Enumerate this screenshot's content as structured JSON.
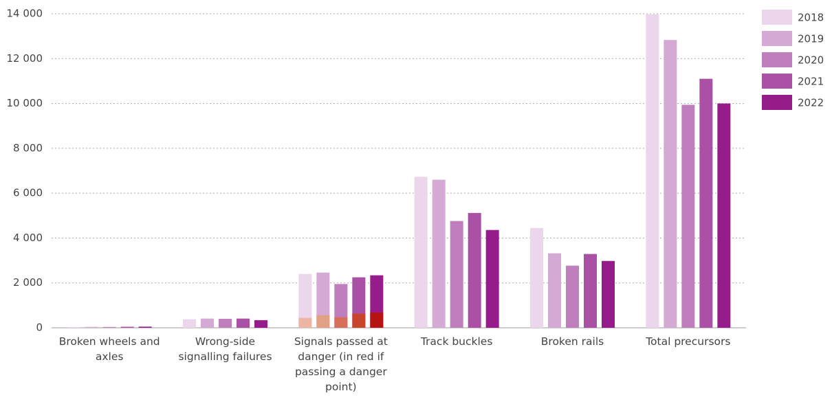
{
  "chart_data": {
    "type": "bar",
    "categories": [
      "Broken wheels and axles",
      "Wrong-side signalling failures",
      "Signals passed at danger (in red if passing a danger point)",
      "Track buckles",
      "Broken rails",
      "Total precursors"
    ],
    "series": [
      {
        "name": "2018",
        "color": "#ebd6eb",
        "values": [
          30,
          380,
          2400,
          6730,
          4450,
          13970
        ],
        "highlight_values": [
          null,
          null,
          440,
          null,
          null,
          null
        ],
        "highlight_color": "#eeb5a2"
      },
      {
        "name": "2019",
        "color": "#d4aad4",
        "values": [
          40,
          410,
          2460,
          6600,
          3320,
          12830
        ],
        "highlight_values": [
          null,
          null,
          560,
          null,
          null,
          null
        ],
        "highlight_color": "#e2a085"
      },
      {
        "name": "2020",
        "color": "#bf7ebc",
        "values": [
          35,
          400,
          1950,
          4760,
          2770,
          9940
        ],
        "highlight_values": [
          null,
          null,
          470,
          null,
          null,
          null
        ],
        "highlight_color": "#d6705b"
      },
      {
        "name": "2021",
        "color": "#aa50a5",
        "values": [
          45,
          410,
          2250,
          5120,
          3290,
          11100
        ],
        "highlight_values": [
          null,
          null,
          630,
          null,
          null,
          null
        ],
        "highlight_color": "#c8442d"
      },
      {
        "name": "2022",
        "color": "#961c8b",
        "values": [
          50,
          340,
          2340,
          4360,
          2980,
          10000
        ],
        "highlight_values": [
          null,
          null,
          680,
          null,
          null,
          null
        ],
        "highlight_color": "#b71313"
      }
    ],
    "ylim": [
      0,
      14000
    ],
    "yticks": [
      0,
      {
        "value": 2000,
        "label": "2 000"
      },
      {
        "value": 4000,
        "label": "4 000"
      },
      {
        "value": 6000,
        "label": "6 000"
      },
      {
        "value": 8000,
        "label": "8 000"
      },
      {
        "value": 10000,
        "label": "10 000"
      },
      {
        "value": 12000,
        "label": "12 000"
      },
      {
        "value": 14000,
        "label": "14 000"
      }
    ],
    "grid": true,
    "legend": "right"
  }
}
